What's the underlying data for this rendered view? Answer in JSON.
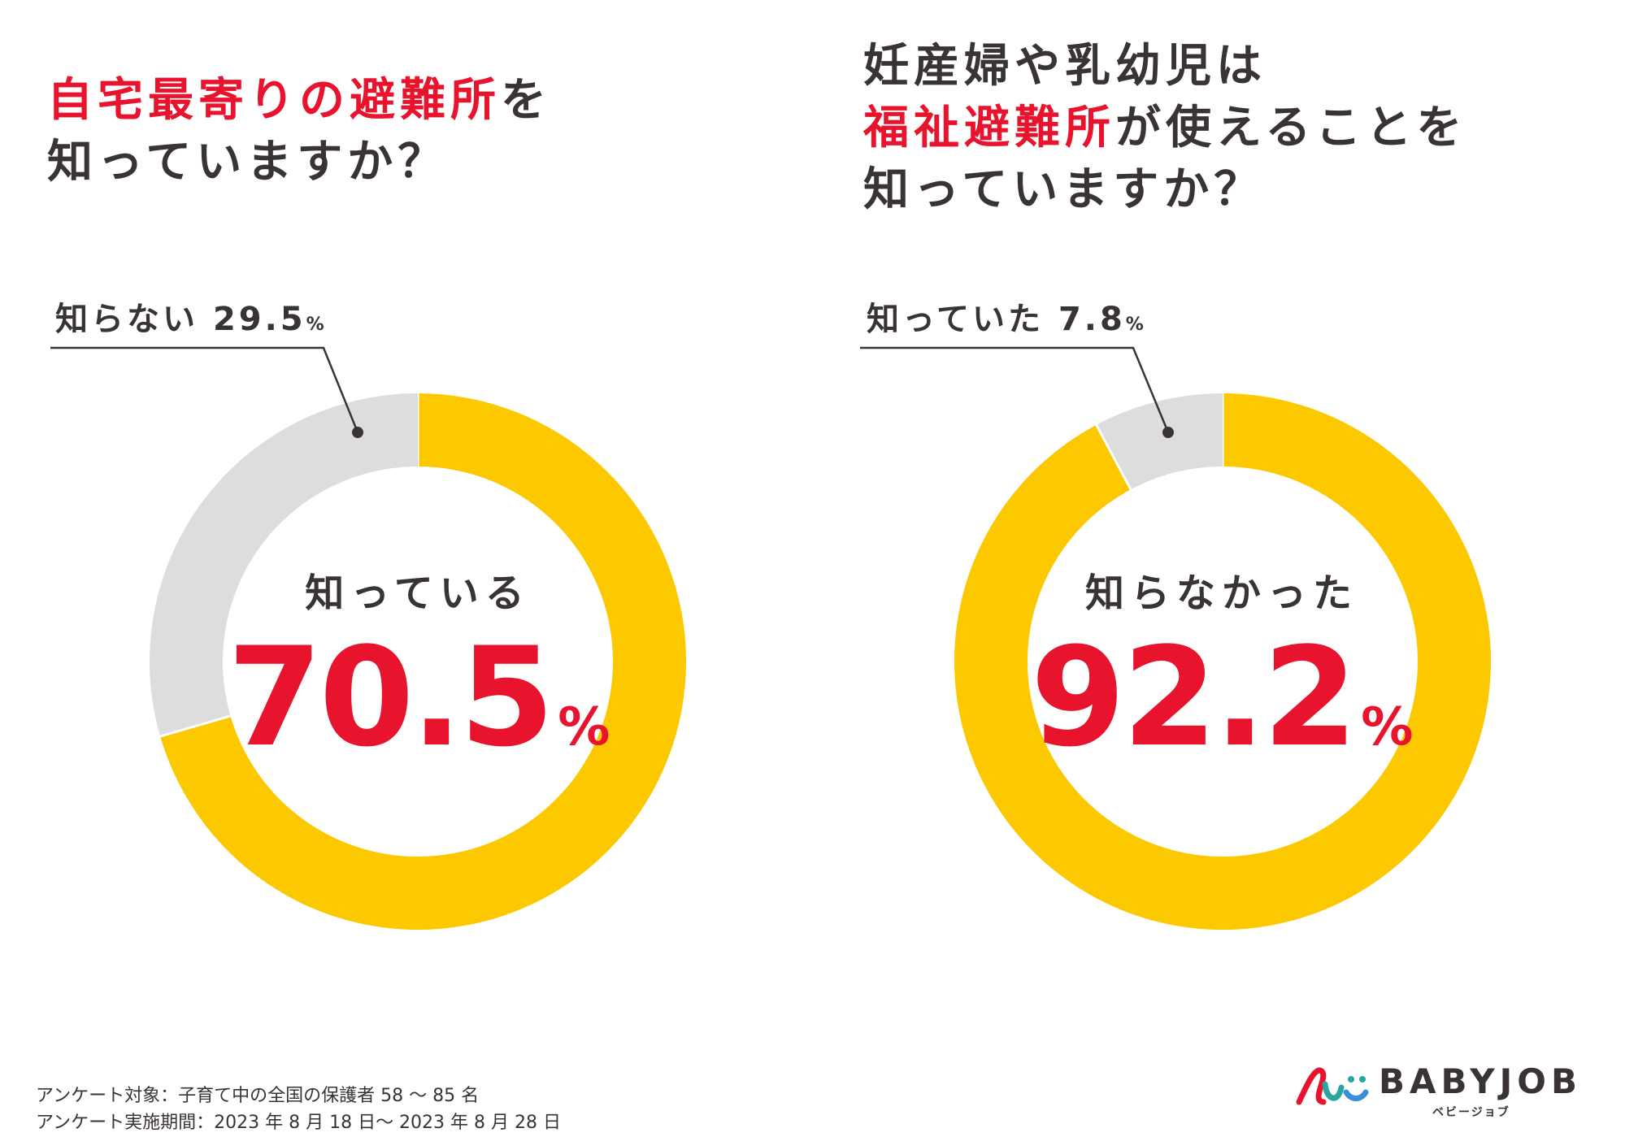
{
  "colors": {
    "accent": "#e8132c",
    "known_segment": "#fcc800",
    "unknown_segment": "#dddddd",
    "text": "#3a3333"
  },
  "questions": [
    {
      "line1_em": "自宅最寄りの避難所",
      "line1_rest": "を",
      "line2": "知っていますか？"
    },
    {
      "line1": "妊産婦や乳幼児は",
      "line2_em": "福祉避難所",
      "line2_rest": "が使えることを",
      "line3": "知っていますか？"
    }
  ],
  "chart_data": [
    {
      "type": "pie",
      "title": "自宅最寄りの避難所を知っていますか？",
      "slices": [
        {
          "label": "知っている",
          "value": 70.5,
          "color": "#fcc800"
        },
        {
          "label": "知らない",
          "value": 29.5,
          "color": "#dddddd"
        }
      ],
      "center_label": "知っている",
      "center_value": "70.5",
      "callout_label": "知らない",
      "callout_value": "29.5",
      "unit": "%"
    },
    {
      "type": "pie",
      "title": "妊産婦や乳幼児は福祉避難所が使えることを知っていますか？",
      "slices": [
        {
          "label": "知らなかった",
          "value": 92.2,
          "color": "#fcc800"
        },
        {
          "label": "知っていた",
          "value": 7.8,
          "color": "#dddddd"
        }
      ],
      "center_label": "知らなかった",
      "center_value": "92.2",
      "callout_label": "知っていた",
      "callout_value": "7.8",
      "unit": "%"
    }
  ],
  "footnotes": [
    "アンケート対象：子育て中の全国の保護者 58 ～ 85 名",
    "アンケート実施期間：2023 年 8 月 18 日～ 2023 年 8 月 28 日"
  ],
  "logo": {
    "name": "BABYJOB",
    "kana": "ベビージョブ"
  }
}
